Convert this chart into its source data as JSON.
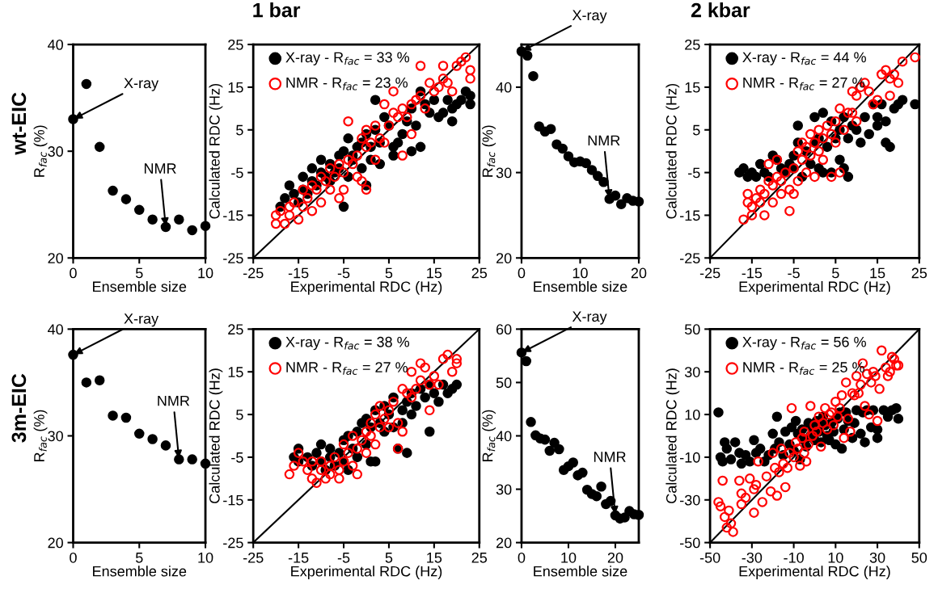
{
  "chart_data": [
    {
      "type": "scatter",
      "xlabel": "Ensemble size",
      "ylabel": "R$_{fac}$ (%)",
      "xlim": [
        0,
        10
      ],
      "xticks": [
        0,
        5,
        10
      ],
      "ylim": [
        20,
        40
      ],
      "yticks": [
        20,
        30,
        40
      ],
      "marker": "circle",
      "series": [
        {
          "color": "#000000",
          "x": [
            0,
            1,
            2,
            3,
            4,
            5,
            6,
            7,
            8,
            9,
            10
          ],
          "values": [
            33,
            36.3,
            30.4,
            26.3,
            25.5,
            24.5,
            23.6,
            22.9,
            23.6,
            22.6,
            23
          ]
        }
      ],
      "annotations": [
        "1 bar",
        "wt-EIC",
        {
          "text": "X-ray",
          "x": 0,
          "y": 33
        },
        {
          "text": "NMR",
          "x": 7,
          "y": 22.9
        }
      ]
    },
    {
      "type": "scatter",
      "xlabel": "Experimental RDC (Hz)",
      "ylabel": "Calculated RDC (Hz)",
      "xlim": [
        -25,
        25
      ],
      "xticks": [
        -25,
        -15,
        -5,
        5,
        15,
        25
      ],
      "ylim": [
        -25,
        25
      ],
      "yticks": [
        -25,
        -15,
        -5,
        5,
        15,
        25
      ],
      "marker": "circle",
      "legend": "top left",
      "series": [
        {
          "name": "X-ray - R$_{fac}$ = 33 %",
          "color": "#000000",
          "x": [
            -19,
            -18,
            -17,
            -16,
            -15,
            -14,
            -14,
            -13,
            -12,
            -12,
            -11,
            -10,
            -10,
            -9,
            -8,
            -8,
            -7,
            -6,
            -6,
            -5,
            -5,
            -4,
            -4,
            -3,
            -3,
            -2,
            -1,
            -1,
            0,
            0,
            1,
            1,
            2,
            3,
            3,
            2,
            4,
            5,
            6,
            6,
            7,
            8,
            9,
            10,
            10,
            11,
            12,
            12,
            13,
            14,
            15,
            16,
            17,
            18,
            19,
            19,
            20,
            21,
            22,
            23,
            23
          ],
          "values": [
            -13,
            -11,
            -8,
            -10,
            -12,
            -9,
            -6,
            -10,
            -7,
            -4,
            -8,
            -5,
            -2,
            -6,
            -3,
            -7,
            -5,
            -1,
            -4,
            -13,
            0,
            -6,
            3,
            -2,
            -1,
            1,
            2,
            -4,
            -8,
            4,
            1,
            -2,
            5,
            2,
            -3,
            12,
            8,
            6,
            1,
            -1,
            2,
            4,
            7,
            0,
            10,
            6,
            1,
            14,
            11,
            9,
            12,
            8,
            9,
            12,
            7,
            10,
            11,
            12,
            14,
            11,
            13
          ]
        },
        {
          "name": "NMR - R$_{fac}$ = 23 %",
          "color": "#ff0000",
          "x": [
            -20,
            -20,
            -19,
            -18,
            -17,
            -17,
            -16,
            -15,
            -14,
            -14,
            -13,
            -12,
            -12,
            -11,
            -10,
            -10,
            -9,
            -8,
            -8,
            -7,
            -6,
            -6,
            -5,
            -5,
            -4,
            -4,
            -3,
            -2,
            -2,
            -1,
            -1,
            0,
            0,
            0,
            1,
            2,
            2,
            3,
            4,
            4,
            5,
            6,
            6,
            7,
            8,
            8,
            9,
            10,
            10,
            11,
            12,
            12,
            13,
            14,
            15,
            16,
            17,
            17,
            18,
            19,
            20,
            21,
            22,
            23,
            23
          ],
          "values": [
            -15,
            -17,
            -14,
            -17,
            -13,
            -15,
            -12,
            -16,
            -13,
            -9,
            -11,
            -8,
            -14,
            -9,
            -6,
            -12,
            -7,
            -9,
            -4,
            -6,
            -11,
            -3,
            -5,
            -9,
            -2,
            7,
            -3,
            -1,
            -6,
            3,
            -7,
            -9,
            1,
            5,
            2,
            -2,
            6,
            3,
            2,
            11,
            6,
            9,
            14,
            8,
            -1,
            10,
            8,
            11,
            4,
            12,
            13,
            20,
            10,
            16,
            14,
            15,
            17,
            20,
            16,
            14,
            20,
            21,
            22,
            19,
            17
          ]
        },
        {
          "type": "line",
          "marker": "none",
          "color": "#000000",
          "x": [
            -25,
            25
          ],
          "values": [
            -25,
            25
          ]
        }
      ]
    },
    {
      "type": "scatter",
      "xlabel": "Ensemble size",
      "ylabel": "R$_{fac}$ (%)",
      "xlim": [
        0,
        20
      ],
      "xticks": [
        0,
        10,
        20
      ],
      "ylim": [
        20,
        45
      ],
      "yticks": [
        20,
        30,
        40
      ],
      "marker": "circle",
      "series": [
        {
          "color": "#000000",
          "x": [
            0,
            1,
            2,
            3,
            4,
            5,
            6,
            7,
            8,
            9,
            10,
            11,
            12,
            13,
            14,
            15,
            16,
            17,
            18,
            19,
            20
          ],
          "values": [
            44.2,
            43.7,
            41.3,
            35.4,
            34.8,
            35.1,
            33.3,
            32.8,
            31.9,
            31.2,
            31.3,
            31.1,
            30.3,
            29.6,
            28.9,
            26.9,
            27.3,
            26.3,
            27.0,
            26.7,
            26.6
          ]
        }
      ],
      "annotations": [
        "2 kbar",
        {
          "text": "X-ray",
          "x": 0,
          "y": 44.2
        },
        {
          "text": "NMR",
          "x": 15,
          "y": 26.9
        }
      ]
    },
    {
      "type": "scatter",
      "xlabel": "Experimental RDC (Hz)",
      "ylabel": "Calculated RDC (Hz)",
      "xlim": [
        -25,
        25
      ],
      "xticks": [
        -25,
        -15,
        -5,
        5,
        15,
        25
      ],
      "ylim": [
        -25,
        25
      ],
      "yticks": [
        -25,
        -15,
        -5,
        5,
        15,
        25
      ],
      "marker": "circle",
      "legend": "top left",
      "series": [
        {
          "name": "X-ray - R$_{fac}$ = 44 %",
          "color": "#000000",
          "x": [
            -18,
            -17,
            -16,
            -15,
            -14,
            -13,
            -12,
            -11,
            -10,
            -9,
            -8,
            -7,
            -6,
            -5,
            -5,
            -4,
            -4,
            -3,
            -2,
            -1,
            0,
            0,
            1,
            1,
            2,
            2,
            3,
            4,
            4,
            5,
            6,
            6,
            7,
            7,
            8,
            8,
            9,
            10,
            11,
            12,
            13,
            14,
            15,
            15,
            16,
            17,
            17,
            18,
            19,
            20,
            21,
            24
          ],
          "values": [
            -5,
            -4,
            -6,
            -5,
            -6,
            -3,
            -5,
            -6,
            -1,
            -2,
            -4,
            -5,
            -3,
            -4,
            -1,
            2,
            6,
            -6,
            0,
            -3,
            8,
            2,
            -4,
            3,
            9,
            -5,
            1,
            -5,
            7,
            3,
            -2,
            5,
            8,
            -4,
            3,
            -6,
            6,
            5,
            2,
            8,
            4,
            11,
            8,
            6,
            11,
            7,
            2,
            1,
            10,
            11,
            12,
            11
          ]
        },
        {
          "name": "NMR - R$_{fac}$ = 27 %",
          "color": "#ff0000",
          "x": [
            -17,
            -16,
            -16,
            -15,
            -15,
            -14,
            -13,
            -13,
            -12,
            -12,
            -11,
            -11,
            -10,
            -10,
            -9,
            -9,
            -8,
            -8,
            -7,
            -6,
            -6,
            -5,
            -5,
            -4,
            -4,
            -3,
            -3,
            -2,
            -2,
            -1,
            -1,
            0,
            0,
            1,
            1,
            2,
            2,
            3,
            4,
            4,
            5,
            5,
            6,
            6,
            7,
            8,
            9,
            9,
            10,
            10,
            11,
            12,
            13,
            14,
            15,
            16,
            17,
            18,
            18,
            19,
            20,
            21,
            24
          ],
          "values": [
            -16,
            -10,
            -12,
            -15,
            -13,
            -11,
            -12,
            -9,
            -10,
            -15,
            -7,
            -3,
            -8,
            -12,
            -6,
            -2,
            -10,
            -7,
            -5,
            -9,
            -14,
            -4,
            -10,
            0,
            -7,
            -2,
            2,
            1,
            -5,
            4,
            -1,
            2,
            -6,
            5,
            0,
            3,
            -2,
            6,
            4,
            -6,
            2,
            7,
            10,
            -5,
            5,
            9,
            9,
            14,
            13,
            7,
            15,
            16,
            14,
            11,
            12,
            18,
            19,
            17,
            13,
            18,
            16,
            21,
            22
          ]
        },
        {
          "type": "line",
          "marker": "none",
          "color": "#000000",
          "x": [
            -25,
            25
          ],
          "values": [
            -25,
            25
          ]
        }
      ]
    },
    {
      "type": "scatter",
      "xlabel": "Ensemble size",
      "ylabel": "R$_{fac}$ (%)",
      "xlim": [
        0,
        10
      ],
      "xticks": [
        0,
        5,
        10
      ],
      "ylim": [
        20,
        40
      ],
      "yticks": [
        20,
        30,
        40
      ],
      "marker": "circle",
      "series": [
        {
          "color": "#000000",
          "x": [
            0,
            1,
            2,
            3,
            4,
            5,
            6,
            7,
            8,
            9,
            10
          ],
          "values": [
            37.6,
            35,
            35.2,
            31.9,
            31.7,
            30.2,
            29.7,
            29.1,
            27.8,
            27.8,
            27.4
          ]
        }
      ],
      "annotations": [
        "3m-EIC",
        {
          "text": "X-ray",
          "x": 0,
          "y": 37.6
        },
        {
          "text": "NMR",
          "x": 8,
          "y": 27.8
        }
      ]
    },
    {
      "type": "scatter",
      "xlabel": "Experimental RDC (Hz)",
      "ylabel": "Calculated RDC (Hz)",
      "xlim": [
        -25,
        25
      ],
      "xticks": [
        -25,
        -15,
        -5,
        5,
        15,
        25
      ],
      "ylim": [
        -25,
        25
      ],
      "yticks": [
        -25,
        -15,
        -5,
        5,
        15,
        25
      ],
      "marker": "circle",
      "legend": "top left",
      "series": [
        {
          "name": "X-ray - R$_{fac}$ = 38 %",
          "color": "#000000",
          "x": [
            -16,
            -15,
            -15,
            -13,
            -12,
            -11,
            -10,
            -10,
            -9,
            -8,
            -8,
            -7,
            -6,
            -5,
            -5,
            -4,
            -4,
            -3,
            -2,
            -2,
            -1,
            0,
            0,
            1,
            1,
            2,
            2,
            3,
            4,
            4,
            5,
            6,
            6,
            7,
            8,
            8,
            9,
            9,
            10,
            10,
            11,
            12,
            13,
            14,
            14,
            15,
            16,
            17,
            18,
            19,
            20
          ],
          "values": [
            -5,
            -6,
            -3,
            -5,
            -7,
            -4,
            -6,
            -2,
            -8,
            -5,
            -3,
            -7,
            -4,
            -1,
            -6,
            0,
            -8,
            -3,
            1,
            -5,
            3,
            -2,
            4,
            2,
            -6,
            6,
            -6,
            3,
            7,
            1,
            5,
            2,
            9,
            -3,
            6,
            3,
            -4,
            8,
            10,
            5,
            7,
            11,
            9,
            1,
            12,
            10,
            8,
            12,
            10,
            11,
            12
          ]
        },
        {
          "name": "NMR - R$_{fac}$ = 27 %",
          "color": "#ff0000",
          "x": [
            -17,
            -16,
            -15,
            -14,
            -13,
            -12,
            -12,
            -11,
            -10,
            -10,
            -9,
            -8,
            -8,
            -7,
            -6,
            -6,
            -5,
            -5,
            -4,
            -3,
            -3,
            -2,
            -2,
            -1,
            0,
            0,
            1,
            1,
            2,
            2,
            3,
            3,
            4,
            5,
            5,
            6,
            7,
            7,
            8,
            8,
            9,
            10,
            10,
            11,
            12,
            12,
            13,
            14,
            14,
            15,
            16,
            17,
            18,
            19,
            20,
            20
          ],
          "values": [
            -9,
            -7,
            -4,
            -6,
            -8,
            -6,
            -10,
            -11,
            -8,
            -6,
            -10,
            -7,
            -9,
            -5,
            -8,
            -10,
            -2,
            -6,
            -4,
            -7,
            0,
            -3,
            -9,
            -1,
            1,
            -4,
            3,
            0,
            -2,
            5,
            2,
            7,
            4,
            6,
            2,
            8,
            3,
            -3,
            11,
            1,
            10,
            9,
            15,
            11,
            13,
            17,
            16,
            6,
            12,
            14,
            12,
            18,
            19,
            15,
            17,
            18
          ]
        },
        {
          "type": "line",
          "marker": "none",
          "color": "#000000",
          "x": [
            -25,
            25
          ],
          "values": [
            -25,
            25
          ]
        }
      ]
    },
    {
      "type": "scatter",
      "xlabel": "Ensemble size",
      "ylabel": "R$_{fac}$ (%)",
      "xlim": [
        0,
        25
      ],
      "xticks": [
        0,
        10,
        20
      ],
      "ylim": [
        20,
        60
      ],
      "yticks": [
        20,
        30,
        40,
        50,
        60
      ],
      "marker": "circle",
      "series": [
        {
          "color": "#000000",
          "x": [
            0,
            1,
            2,
            3,
            4,
            5,
            6,
            7,
            8,
            9,
            10,
            11,
            12,
            13,
            14,
            15,
            16,
            17,
            18,
            19,
            20,
            21,
            22,
            23,
            24,
            25
          ],
          "values": [
            55.6,
            54,
            42.6,
            40.1,
            39.5,
            39.3,
            37.2,
            38.7,
            37.5,
            33.6,
            34.3,
            35.0,
            32.6,
            33.1,
            29.9,
            29.1,
            28.7,
            30.5,
            27.2,
            27.8,
            25.1,
            24.5,
            24.7,
            25.9,
            25.3,
            25.2
          ]
        }
      ],
      "annotations": [
        {
          "text": "X-ray",
          "x": 0,
          "y": 55.6
        },
        {
          "text": "NMR",
          "x": 20,
          "y": 25.1
        }
      ]
    },
    {
      "type": "scatter",
      "xlabel": "Experimental RDC (Hz)",
      "ylabel": "Calculated RDC (Hz)",
      "xlim": [
        -50,
        50
      ],
      "xticks": [
        -50,
        -30,
        -10,
        10,
        30,
        50
      ],
      "ylim": [
        -50,
        50
      ],
      "yticks": [
        -50,
        -30,
        -10,
        10,
        30,
        50
      ],
      "marker": "circle",
      "legend": "top left",
      "series": [
        {
          "name": "X-ray - R$_{fac}$ = 56 %",
          "color": "#000000",
          "x": [
            -46,
            -45,
            -44,
            -43,
            -42,
            -40,
            -38,
            -36,
            -35,
            -33,
            -31,
            -29,
            -28,
            -26,
            -24,
            -22,
            -20,
            -19,
            -18,
            -17,
            -15,
            -14,
            -12,
            -11,
            -10,
            -9,
            -8,
            -7,
            -6,
            -5,
            -4,
            -3,
            -2,
            -1,
            0,
            1,
            2,
            3,
            4,
            5,
            6,
            7,
            8,
            9,
            10,
            11,
            12,
            13,
            14,
            15,
            16,
            18,
            19,
            20,
            22,
            23,
            24,
            25,
            27,
            28,
            30,
            30,
            33,
            35,
            37,
            39,
            40
          ],
          "values": [
            11,
            -10,
            -12,
            -3,
            -6,
            -11,
            -3,
            -8,
            -13,
            -9,
            -12,
            -2,
            -8,
            -6,
            -12,
            -9,
            1,
            -6,
            9,
            -3,
            -9,
            2,
            -4,
            4,
            -7,
            7,
            1,
            -11,
            3,
            -2,
            -5,
            6,
            0,
            4,
            -2,
            7,
            2,
            -3,
            9,
            5,
            0,
            -2,
            6,
            2,
            -4,
            8,
            11,
            -6,
            3,
            11,
            7,
            -1,
            6,
            12,
            1,
            11,
            -3,
            12,
            4,
            12,
            -1,
            3,
            12,
            9,
            12,
            13,
            8
          ]
        },
        {
          "name": "NMR - R$_{fac}$ = 25 %",
          "color": "#ff0000",
          "x": [
            -46,
            -45,
            -44,
            -43,
            -42,
            -41,
            -40,
            -39,
            -36,
            -35,
            -35,
            -33,
            -31,
            -29,
            -29,
            -28,
            -27,
            -25,
            -23,
            -21,
            -20,
            -19,
            -18,
            -17,
            -16,
            -15,
            -14,
            -13,
            -12,
            -11,
            -10,
            -9,
            -8,
            -7,
            -6,
            -5,
            -5,
            -4,
            -3,
            -2,
            -1,
            0,
            1,
            2,
            3,
            4,
            5,
            6,
            7,
            8,
            9,
            10,
            11,
            12,
            13,
            14,
            15,
            16,
            17,
            18,
            19,
            20,
            21,
            22,
            23,
            24,
            25,
            26,
            27,
            28,
            29,
            30,
            31,
            32,
            34,
            35,
            36,
            37,
            38,
            39,
            40
          ],
          "values": [
            -31,
            -33,
            -21,
            -38,
            -43,
            -35,
            -41,
            -45,
            -21,
            -27,
            -32,
            -29,
            -20,
            -36,
            -25,
            -23,
            -12,
            -31,
            -19,
            -26,
            -8,
            -15,
            -28,
            -17,
            -6,
            -13,
            -24,
            -15,
            -8,
            13,
            -10,
            -3,
            -6,
            -14,
            -1,
            2,
            -8,
            -12,
            -4,
            14,
            0,
            5,
            2,
            9,
            -5,
            6,
            13,
            3,
            10,
            11,
            5,
            16,
            9,
            13,
            19,
            -1,
            25,
            8,
            2,
            20,
            19,
            28,
            20,
            24,
            34,
            14,
            29,
            10,
            25,
            30,
            28,
            7,
            22,
            40,
            32,
            28,
            30,
            37,
            36,
            33,
            33
          ]
        },
        {
          "type": "line",
          "marker": "none",
          "color": "#000000",
          "x": [
            -50,
            50
          ],
          "values": [
            -50,
            50
          ]
        }
      ]
    }
  ]
}
